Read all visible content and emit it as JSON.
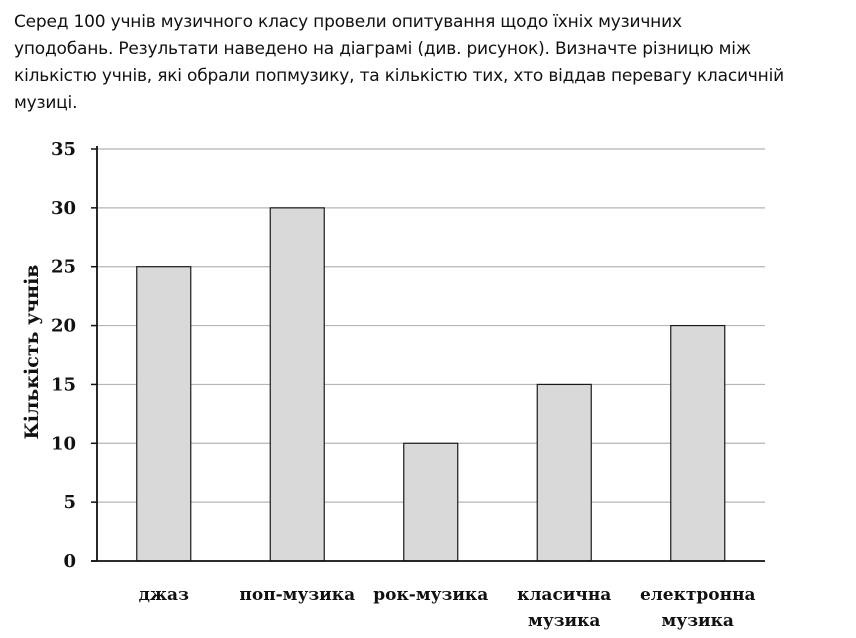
{
  "problem": {
    "lines": [
      "Серед 100 учнів музичного класу провели опитування щодо їхніх музичних",
      "уподобань. Результати наведено на діаграмі (див. рисунок). Визначте різницю між",
      "кількістю учнів, які обрали попмузику, та кількістю тих, хто віддав перевагу класичній",
      "музиці."
    ]
  },
  "chart_data": {
    "type": "bar",
    "ylabel": "Кількість учнів",
    "xlabel": "",
    "title": "",
    "ylim": [
      0,
      35
    ],
    "yticks": [
      0,
      5,
      10,
      15,
      20,
      25,
      30,
      35
    ],
    "grid": true,
    "categories": [
      [
        "джаз"
      ],
      [
        "поп-музика"
      ],
      [
        "рок-музика"
      ],
      [
        "класична",
        "музика"
      ],
      [
        "електронна",
        "музика"
      ]
    ],
    "values": [
      25,
      30,
      10,
      15,
      20
    ],
    "bar_color": "#d9d9d9",
    "bar_edge_color": "#1a1a1a",
    "grid_color": "#b5b5b5"
  }
}
